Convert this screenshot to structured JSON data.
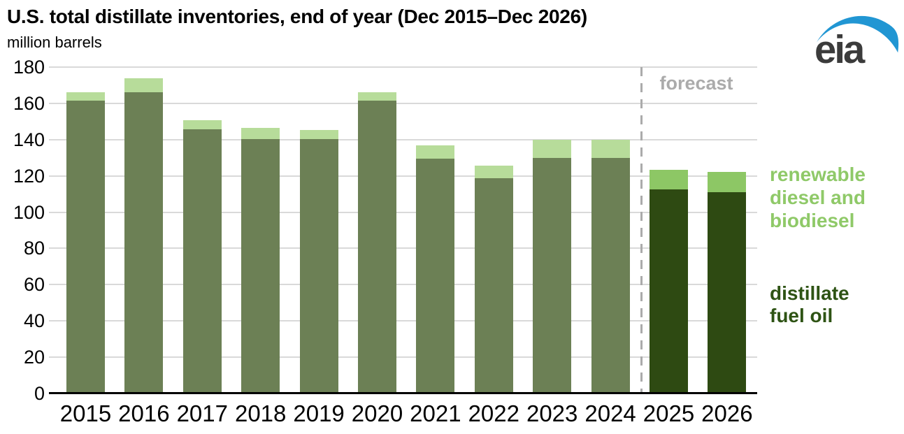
{
  "header": {
    "title": "U.S. total distillate inventories, end of year (Dec 2015–Dec 2026)",
    "subtitle": "million barrels"
  },
  "logo": {
    "text": "eia"
  },
  "chart_data": {
    "type": "bar",
    "stacked": true,
    "title": "U.S. total distillate inventories, end of year (Dec 2015–Dec 2026)",
    "ylabel": "million barrels",
    "xlabel": "",
    "ylim": [
      0,
      180
    ],
    "yticks": [
      0,
      20,
      40,
      60,
      80,
      100,
      120,
      140,
      160,
      180
    ],
    "grid": "horizontal",
    "categories": [
      "2015",
      "2016",
      "2017",
      "2018",
      "2019",
      "2020",
      "2021",
      "2022",
      "2023",
      "2024",
      "2025",
      "2026"
    ],
    "series": [
      {
        "name": "distillate fuel oil",
        "values": [
          161.5,
          166.0,
          145.7,
          140.3,
          140.3,
          161.5,
          129.6,
          118.6,
          130.0,
          130.0,
          112.6,
          111.1
        ]
      },
      {
        "name": "renewable diesel and biodiesel",
        "values": [
          4.8,
          8.0,
          4.9,
          6.0,
          5.1,
          4.5,
          7.1,
          7.1,
          10.0,
          9.9,
          10.7,
          11.1
        ]
      }
    ],
    "forecast_categories": [
      "2025",
      "2026"
    ],
    "forecast_label": "forecast",
    "legend_position": "right"
  },
  "legend": {
    "renewable_label": "renewable diesel and biodiesel",
    "distillate_label": "distillate fuel oil"
  },
  "colors": {
    "title_text": "#000000",
    "bar_history_distillate": "#6c8055",
    "bar_history_renewable": "#b7dc9a",
    "bar_forecast_distillate": "#2e4a12",
    "bar_forecast_renewable": "#8dc765",
    "legend_renewable_text": "#8fc968",
    "legend_distillate_text": "#2e5314",
    "forecast_text": "#ababab",
    "dashed_line": "#ababab",
    "gridline": "#d9d9d9",
    "axis_line": "#000000",
    "eia_logo_blue": "#2196d3",
    "eia_logo_gray": "#3b3b3b"
  }
}
